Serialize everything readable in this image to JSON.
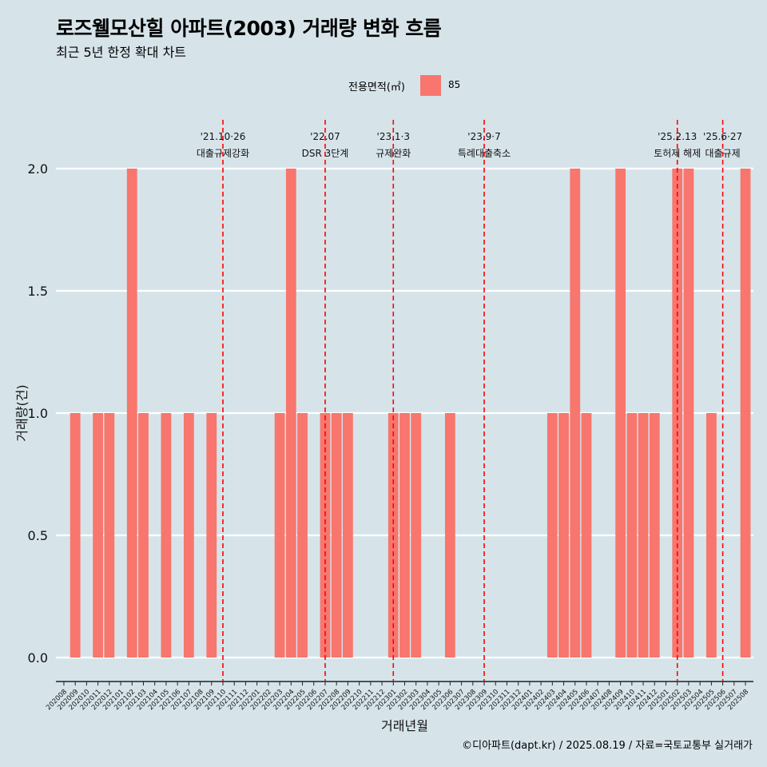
{
  "title": "로즈웰모산힐 아파트(2003) 거래량 변화 흐름",
  "subtitle": "최근 5년 한정 확대 차트",
  "legend": {
    "title": "전용면적(㎡)",
    "label": "85"
  },
  "caption": "©디아파트(dapt.kr) / 2025.08.19 / 자료=국토교통부 실거래가",
  "colors": {
    "background": "#d6e4ea",
    "bar": "#f8766d",
    "grid": "#ffffff",
    "event_line": "#ff0000"
  },
  "chart_data": {
    "type": "bar",
    "xlabel": "거래년월",
    "ylabel": "거래량(건)",
    "ylim": [
      0,
      2
    ],
    "yticks": [
      "0.0",
      "0.5",
      "1.0",
      "1.5",
      "2.0"
    ],
    "grid": true,
    "legend_position": "top",
    "categories": [
      "202008",
      "202009",
      "202010",
      "202011",
      "202012",
      "202101",
      "202102",
      "202103",
      "202104",
      "202105",
      "202106",
      "202107",
      "202108",
      "202109",
      "202110",
      "202111",
      "202112",
      "202201",
      "202202",
      "202203",
      "202204",
      "202205",
      "202206",
      "202207",
      "202208",
      "202209",
      "202210",
      "202211",
      "202212",
      "202301",
      "202302",
      "202303",
      "202304",
      "202305",
      "202306",
      "202307",
      "202308",
      "202309",
      "202310",
      "202311",
      "202312",
      "202401",
      "202402",
      "202403",
      "202404",
      "202405",
      "202406",
      "202407",
      "202408",
      "202409",
      "202410",
      "202411",
      "202412",
      "202501",
      "202502",
      "202503",
      "202504",
      "202505",
      "202506",
      "202507",
      "202508"
    ],
    "series": [
      {
        "name": "85",
        "values": [
          0,
          1,
          0,
          1,
          1,
          0,
          2,
          1,
          0,
          1,
          0,
          1,
          0,
          1,
          0,
          0,
          0,
          0,
          0,
          1,
          2,
          1,
          0,
          1,
          1,
          1,
          0,
          0,
          0,
          1,
          1,
          1,
          0,
          0,
          1,
          0,
          0,
          0,
          0,
          0,
          0,
          0,
          0,
          1,
          1,
          2,
          1,
          0,
          0,
          2,
          1,
          1,
          1,
          0,
          2,
          2,
          0,
          1,
          0,
          0,
          2
        ]
      }
    ],
    "events": [
      {
        "date_label": "'21.10·26",
        "text": "대출규제강화",
        "x": "202110"
      },
      {
        "date_label": "'22.07",
        "text": "DSR 3단계",
        "x": "202207"
      },
      {
        "date_label": "'23.1·3",
        "text": "규제완화",
        "x": "202301"
      },
      {
        "date_label": "'23.9·7",
        "text": "특례대출축소",
        "x": "202309"
      },
      {
        "date_label": "'25.2.13",
        "text": "토허제 해제",
        "x": "202502"
      },
      {
        "date_label": "'25.6·27",
        "text": "대출규제",
        "x": "202506"
      }
    ]
  }
}
